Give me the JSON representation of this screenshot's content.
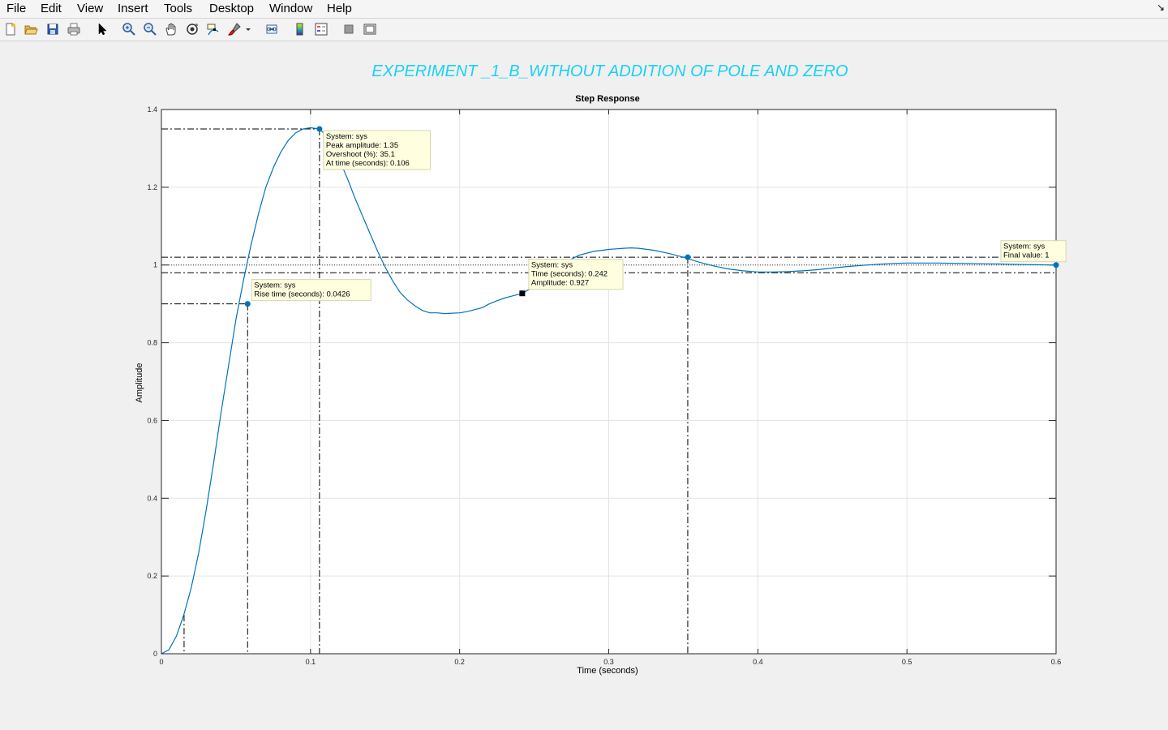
{
  "menubar": {
    "items": [
      "File",
      "Edit",
      "View",
      "Insert",
      "Tools",
      "Desktop",
      "Window",
      "Help"
    ]
  },
  "toolbar": {
    "icons": [
      "new-figure-icon",
      "open-file-icon",
      "save-icon",
      "print-icon",
      "pointer-icon",
      "zoom-in-icon",
      "zoom-out-icon",
      "pan-hand-icon",
      "rotate-3d-icon",
      "data-cursor-icon",
      "brush-icon",
      "brush-dropdown-icon",
      "link-plot-icon",
      "colorbar-icon",
      "legend-icon",
      "hide-plot-tools-icon",
      "show-plot-tools-icon"
    ]
  },
  "figure": {
    "suptitle": "EXPERIMENT _1_B_WITHOUT ADDITION OF POLE AND ZERO",
    "suptitle_color": "#1ad1f5",
    "line_color": "#0072bd"
  },
  "chart_data": {
    "type": "line",
    "title": "Step Response",
    "xlabel": "Time (seconds)",
    "ylabel": "Amplitude",
    "xlim": [
      0,
      0.6
    ],
    "ylim": [
      0,
      1.4
    ],
    "xticks": [
      "0",
      "0.1",
      "0.2",
      "0.3",
      "0.4",
      "0.5",
      "0.6"
    ],
    "yticks": [
      "0",
      "0.2",
      "0.4",
      "0.6",
      "0.8",
      "1",
      "1.2",
      "1.4"
    ],
    "grid": true,
    "series": [
      {
        "x": [
          0,
          0.005,
          0.01,
          0.015,
          0.02,
          0.025,
          0.03,
          0.035,
          0.04,
          0.045,
          0.05,
          0.055,
          0.06,
          0.065,
          0.07,
          0.075,
          0.08,
          0.085,
          0.09,
          0.095,
          0.1,
          0.106,
          0.11,
          0.115,
          0.12,
          0.125,
          0.13,
          0.135,
          0.14,
          0.145,
          0.15,
          0.155,
          0.16,
          0.165,
          0.17,
          0.175,
          0.18,
          0.185,
          0.19,
          0.195,
          0.2,
          0.205,
          0.21,
          0.215,
          0.22,
          0.225,
          0.23,
          0.235,
          0.242,
          0.25,
          0.26,
          0.27,
          0.28,
          0.29,
          0.3,
          0.31,
          0.315,
          0.32,
          0.33,
          0.34,
          0.35,
          0.36,
          0.37,
          0.38,
          0.39,
          0.4,
          0.41,
          0.42,
          0.43,
          0.44,
          0.45,
          0.46,
          0.47,
          0.48,
          0.49,
          0.5,
          0.52,
          0.54,
          0.56,
          0.58,
          0.6
        ],
        "y": [
          0,
          0.01,
          0.045,
          0.1,
          0.17,
          0.26,
          0.37,
          0.49,
          0.62,
          0.74,
          0.86,
          0.96,
          1.05,
          1.13,
          1.2,
          1.25,
          1.29,
          1.32,
          1.34,
          1.35,
          1.353,
          1.35,
          1.335,
          1.3,
          1.265,
          1.22,
          1.17,
          1.125,
          1.08,
          1.035,
          0.995,
          0.96,
          0.93,
          0.91,
          0.895,
          0.883,
          0.877,
          0.877,
          0.875,
          0.876,
          0.877,
          0.88,
          0.885,
          0.89,
          0.9,
          0.908,
          0.915,
          0.92,
          0.927,
          0.945,
          0.975,
          1.005,
          1.025,
          1.035,
          1.04,
          1.043,
          1.044,
          1.043,
          1.038,
          1.03,
          1.02,
          1.008,
          0.998,
          0.99,
          0.985,
          0.982,
          0.982,
          0.983,
          0.985,
          0.988,
          0.992,
          0.996,
          0.999,
          1.002,
          1.004,
          1.005,
          1.005,
          1.004,
          1.003,
          1.001,
          1.0
        ]
      }
    ],
    "reference_lines": {
      "final_value": 1,
      "settling_band": [
        0.98,
        1.02
      ],
      "rise_band": [
        0.1,
        0.9
      ],
      "rise_start_time": 0.0152,
      "rise_end_time": 0.0578,
      "peak_time": 0.106,
      "peak_amplitude": 1.35,
      "settling_time": 0.353
    },
    "markers": [
      {
        "x": 0.0578,
        "y": 0.9,
        "shape": "dot"
      },
      {
        "x": 0.106,
        "y": 1.35,
        "shape": "dot"
      },
      {
        "x": 0.353,
        "y": 1.02,
        "shape": "dot"
      },
      {
        "x": 0.6,
        "y": 1.0,
        "shape": "dot"
      },
      {
        "x": 0.242,
        "y": 0.927,
        "shape": "square"
      }
    ],
    "annotations": [
      {
        "x": 0.0578,
        "y": 0.9,
        "lines": [
          "System: sys",
          "Rise time (seconds): 0.0426"
        ]
      },
      {
        "x": 0.106,
        "y": 1.35,
        "lines": [
          "System: sys",
          "Peak amplitude: 1.35",
          "Overshoot (%): 35.1",
          "At time (seconds): 0.106"
        ]
      },
      {
        "x": 0.242,
        "y": 0.927,
        "lines": [
          "System: sys",
          "Time (seconds): 0.242",
          "Amplitude: 0.927"
        ]
      },
      {
        "x": 0.6,
        "y": 1.0,
        "lines": [
          "System: sys",
          "Final value: 1"
        ]
      }
    ]
  }
}
